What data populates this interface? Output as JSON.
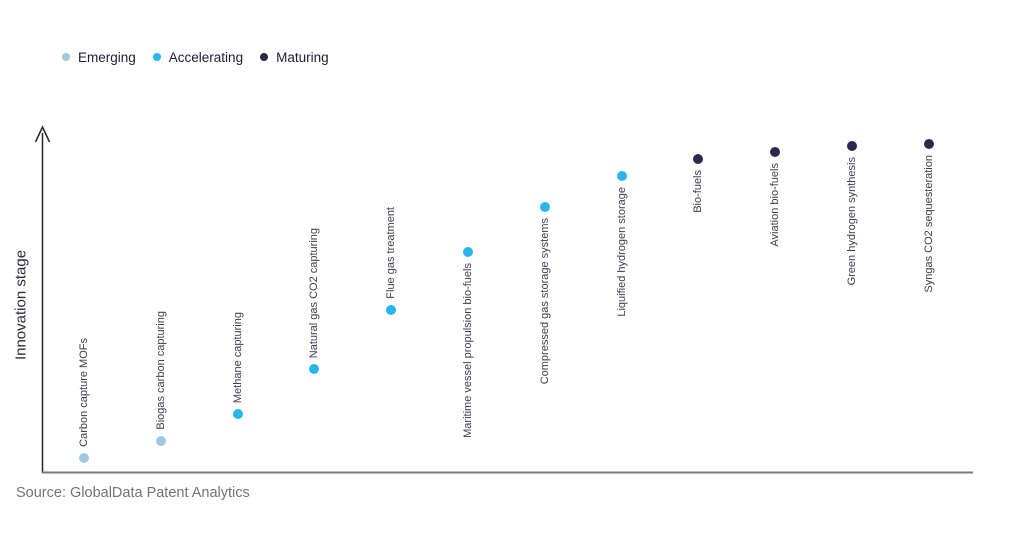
{
  "chart_data": {
    "type": "scatter",
    "title": "",
    "xlabel": "",
    "ylabel": "Innovation stage",
    "ylim": [
      0,
      1
    ],
    "grid": false,
    "legend_position": "top-left",
    "legend": [
      {
        "label": "Emerging",
        "color": "#a0c8de"
      },
      {
        "label": "Accelerating",
        "color": "#29b6f0"
      },
      {
        "label": "Maturing",
        "color": "#302650"
      }
    ],
    "points": [
      {
        "label": "Carbon capture MOFs",
        "stage_group": "Emerging",
        "value": 0.04,
        "label_position": "above"
      },
      {
        "label": "Biogas carbon capturing",
        "stage_group": "Emerging",
        "value": 0.09,
        "label_position": "above"
      },
      {
        "label": "Methane capturing",
        "stage_group": "Accelerating",
        "value": 0.17,
        "label_position": "above"
      },
      {
        "label": "Natural gas CO2 capturing",
        "stage_group": "Accelerating",
        "value": 0.3,
        "label_position": "above"
      },
      {
        "label": "Flue gas treatment",
        "stage_group": "Accelerating",
        "value": 0.47,
        "label_position": "above"
      },
      {
        "label": "Maritime vessel propulsion bio-fuels",
        "stage_group": "Accelerating",
        "value": 0.64,
        "label_position": "below"
      },
      {
        "label": "Compressed gas storage systems",
        "stage_group": "Accelerating",
        "value": 0.77,
        "label_position": "below"
      },
      {
        "label": "Liquified hydrogen storage",
        "stage_group": "Accelerating",
        "value": 0.86,
        "label_position": "below"
      },
      {
        "label": "Bio-fuels",
        "stage_group": "Maturing",
        "value": 0.91,
        "label_position": "below"
      },
      {
        "label": "Aviation bio-fuels",
        "stage_group": "Maturing",
        "value": 0.93,
        "label_position": "below"
      },
      {
        "label": "Green hydrogen synthesis",
        "stage_group": "Maturing",
        "value": 0.948,
        "label_position": "below"
      },
      {
        "label": "Syngas CO2 sequesteration",
        "stage_group": "Maturing",
        "value": 0.953,
        "label_position": "below"
      }
    ],
    "source": "Source: GlobalData Patent Analytics",
    "colors": {
      "axis_vertical": "#262626",
      "axis_horizontal": "#7a7a7a"
    }
  }
}
